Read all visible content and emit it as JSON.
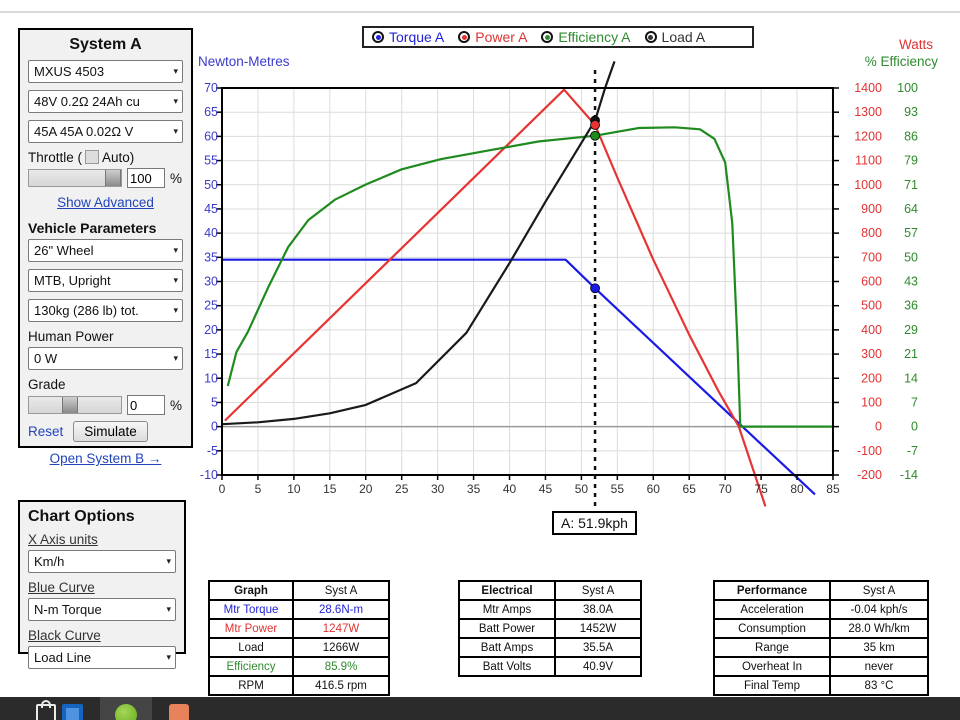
{
  "icons": {
    "dropdown_arrow": "▾"
  },
  "system_a": {
    "title": "System A",
    "motor_select": "MXUS 4503",
    "battery_select": "48V 0.2Ω 24Ah cu",
    "controller_select": "45A 45A 0.02Ω V",
    "throttle_label": "Throttle (",
    "throttle_auto_label": "Auto)",
    "throttle_value": "100",
    "throttle_unit": "%",
    "show_advanced": "Show Advanced",
    "vehicle_params_title": "Vehicle Parameters",
    "wheel_select": "26\"  Wheel",
    "position_select": "MTB, Upright",
    "weight_select": "130kg (286 lb) tot.",
    "human_power_label": "Human Power",
    "human_power_select": "0 W",
    "grade_label": "Grade",
    "grade_value": "0",
    "grade_unit": "%",
    "reset_label": "Reset",
    "simulate_label": "Simulate",
    "open_system_b": "Open System B →"
  },
  "chart_options": {
    "title": "Chart Options",
    "x_axis_label": "X Axis units",
    "x_axis_select": "Km/h",
    "blue_curve_label": "Blue Curve",
    "blue_curve_select": "N-m Torque",
    "black_curve_label": "Black Curve",
    "black_curve_select": "Load Line"
  },
  "legend": {
    "items": [
      {
        "label": "Torque A",
        "color": "#2323d6"
      },
      {
        "label": "Power A",
        "color": "#e03333"
      },
      {
        "label": "Efficiency A",
        "color": "#2e8b2e"
      },
      {
        "label": "Load A",
        "color": "#333333"
      }
    ]
  },
  "chart_data": {
    "type": "line",
    "x_axis": {
      "min": 0,
      "max": 85,
      "ticks": [
        0,
        5,
        10,
        15,
        20,
        25,
        30,
        35,
        40,
        45,
        50,
        55,
        60,
        65,
        70,
        75,
        80,
        85
      ],
      "units": "Km/h"
    },
    "left_axis": {
      "title": "Newton-Metres",
      "color": "#3a3acc",
      "ticks": [
        70,
        65,
        60,
        55,
        50,
        45,
        40,
        35,
        30,
        25,
        20,
        15,
        10,
        5,
        0,
        -5,
        -10
      ]
    },
    "watts_axis": {
      "title": "Watts",
      "color": "#e03333",
      "ticks": [
        1400,
        1300,
        1200,
        1100,
        1000,
        900,
        800,
        700,
        600,
        500,
        400,
        300,
        200,
        100,
        0,
        -100,
        -200
      ]
    },
    "eff_axis": {
      "title": "% Efficiency",
      "color": "#2e8b2e",
      "ticks": [
        100,
        93,
        86,
        79,
        71,
        64,
        57,
        50,
        43,
        36,
        29,
        21,
        14,
        7,
        0,
        -7,
        -14
      ]
    },
    "series": [
      {
        "name": "Torque A",
        "axis": "nm",
        "color": "#1a1ae6",
        "points": [
          [
            0,
            34.5
          ],
          [
            47.8,
            34.5
          ],
          [
            51.9,
            28.6
          ],
          [
            72.4,
            0
          ],
          [
            82.5,
            -14
          ]
        ]
      },
      {
        "name": "Power A",
        "axis": "watts",
        "color": "#e83333",
        "points": [
          [
            0.4,
            25
          ],
          [
            47.6,
            1393
          ],
          [
            51.9,
            1247
          ],
          [
            55,
            1030
          ],
          [
            60,
            690
          ],
          [
            65,
            380
          ],
          [
            69,
            150
          ],
          [
            71.9,
            0
          ],
          [
            75.6,
            -330
          ]
        ]
      },
      {
        "name": "Efficiency A",
        "axis": "pct",
        "color": "#1f8b1f",
        "points": [
          [
            0.8,
            12
          ],
          [
            2,
            22
          ],
          [
            3.6,
            28
          ],
          [
            6.4,
            41
          ],
          [
            9.2,
            53
          ],
          [
            12,
            61
          ],
          [
            15.7,
            67
          ],
          [
            20,
            71.5
          ],
          [
            25,
            76
          ],
          [
            30.5,
            79
          ],
          [
            37,
            81.5
          ],
          [
            44,
            84.2
          ],
          [
            51.9,
            85.9
          ],
          [
            58,
            88.2
          ],
          [
            63,
            88.4
          ],
          [
            66.5,
            87.8
          ],
          [
            68.5,
            85
          ],
          [
            70,
            78
          ],
          [
            71,
            60
          ],
          [
            71.7,
            25
          ],
          [
            72.1,
            0
          ],
          [
            85,
            0
          ]
        ]
      },
      {
        "name": "Load A",
        "axis": "watts",
        "color": "#1a1a1a",
        "points": [
          [
            0,
            10
          ],
          [
            5,
            18
          ],
          [
            10,
            32
          ],
          [
            15,
            55
          ],
          [
            20,
            90
          ],
          [
            27,
            180
          ],
          [
            34,
            388
          ],
          [
            40,
            676
          ],
          [
            45,
            930
          ],
          [
            48,
            1075
          ],
          [
            51.9,
            1266
          ],
          [
            53.3,
            1400
          ],
          [
            54.6,
            1510
          ]
        ]
      }
    ],
    "cursor": {
      "x": 51.9,
      "label": "A: 51.9kph",
      "markers": [
        {
          "axis": "watts",
          "value": 1266,
          "color": "#111111"
        },
        {
          "axis": "watts",
          "value": 1247,
          "color": "#e83333"
        },
        {
          "axis": "pct",
          "value": 85.9,
          "color": "#1f8b1f"
        },
        {
          "axis": "nm",
          "value": 28.6,
          "color": "#1a1ae6"
        }
      ]
    }
  },
  "tables": {
    "graph": {
      "header": [
        "Graph",
        "Syst A"
      ],
      "rows": [
        {
          "label": "Mtr Torque",
          "value": "28.6N-m",
          "color": "#2323d6"
        },
        {
          "label": "Mtr Power",
          "value": "1247W",
          "color": "#e03333"
        },
        {
          "label": "Load",
          "value": "1266W",
          "color": "#111111"
        },
        {
          "label": "Efficiency",
          "value": "85.9%",
          "color": "#2e8b2e"
        },
        {
          "label": "RPM",
          "value": "416.5 rpm",
          "color": "#111111"
        }
      ]
    },
    "electrical": {
      "header": [
        "Electrical",
        "Syst A"
      ],
      "rows": [
        {
          "label": "Mtr Amps",
          "value": "38.0A",
          "color": "#111111"
        },
        {
          "label": "Batt Power",
          "value": "1452W",
          "color": "#111111"
        },
        {
          "label": "Batt Amps",
          "value": "35.5A",
          "color": "#111111"
        },
        {
          "label": "Batt Volts",
          "value": "40.9V",
          "color": "#111111"
        }
      ]
    },
    "performance": {
      "header": [
        "Performance",
        "Syst A"
      ],
      "rows": [
        {
          "label": "Acceleration",
          "value": "-0.04 kph/s",
          "color": "#111111"
        },
        {
          "label": "Consumption",
          "value": "28.0 Wh/km",
          "color": "#111111"
        },
        {
          "label": "Range",
          "value": "35 km",
          "color": "#111111"
        },
        {
          "label": "Overheat In",
          "value": "never",
          "color": "#111111"
        },
        {
          "label": "Final Temp",
          "value": "83 °C",
          "color": "#111111"
        }
      ]
    }
  }
}
